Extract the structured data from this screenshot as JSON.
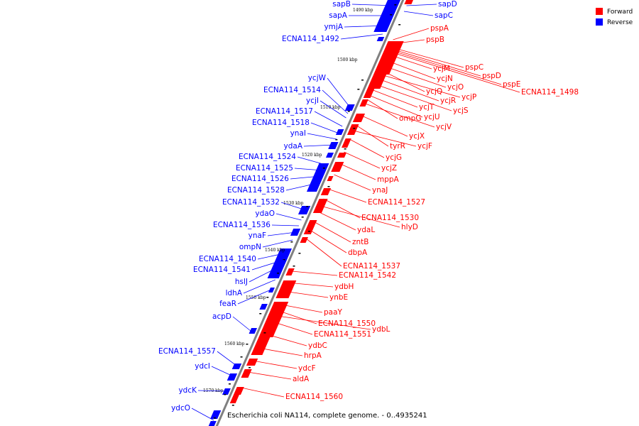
{
  "title": "Escherichia coli NA114, complete genome. - 0..4935241",
  "colors": {
    "forward": "#ff0000",
    "reverse": "#0000ff",
    "axis": "#808080",
    "mark": "#000000"
  },
  "legend": [
    {
      "label": "Forward",
      "color": "#ff0000"
    },
    {
      "label": "Reverse",
      "color": "#0000ff"
    }
  ],
  "kbp_ticks": [
    "1490 kbp",
    "1500 kbp",
    "1510 kbp",
    "1520 kbp",
    "1530 kbp",
    "1540 kbp",
    "1550 kbp",
    "1560 kbp",
    "1570 kbp"
  ],
  "reverse_genes": [
    "sapB",
    "sapA",
    "ymjA",
    "ECNA114_1492",
    "ycjW",
    "ECNA114_1514",
    "ycjI",
    "ECNA114_1517",
    "ECNA114_1518",
    "ynaI",
    "ydaA",
    "ECNA114_1524",
    "ECNA114_1525",
    "ECNA114_1526",
    "ECNA114_1528",
    "ECNA114_1532",
    "ydaO",
    "ECNA114_1536",
    "ynaF",
    "ompN",
    "ECNA114_1540",
    "ECNA114_1541",
    "hslJ",
    "ldhA",
    "feaR",
    "acpD",
    "ECNA114_1557",
    "ydcI",
    "ydcK",
    "ydcO",
    "sapD",
    "sapC"
  ],
  "forward_genes": [
    "pspA",
    "pspB",
    "pspC",
    "pspD",
    "pspE",
    "ECNA114_1498",
    "ycjM",
    "ycjN",
    "ycjO",
    "ycjQ",
    "ycjP",
    "ycjR",
    "ycjS",
    "ycjT",
    "ycjU",
    "ompG",
    "ycjV",
    "ycjX",
    "tyrR",
    "ycjF",
    "ycjG",
    "ycjZ",
    "mppA",
    "ynaJ",
    "ECNA114_1527",
    "ECNA114_1530",
    "hlyD",
    "ydaL",
    "zntB",
    "dbpA",
    "ECNA114_1537",
    "ECNA114_1542",
    "ydbH",
    "ynbE",
    "paaY",
    "ECNA114_1550",
    "ydbL",
    "ECNA114_1551",
    "ydbC",
    "hrpA",
    "ydcF",
    "aldA",
    "ECNA114_1560"
  ]
}
